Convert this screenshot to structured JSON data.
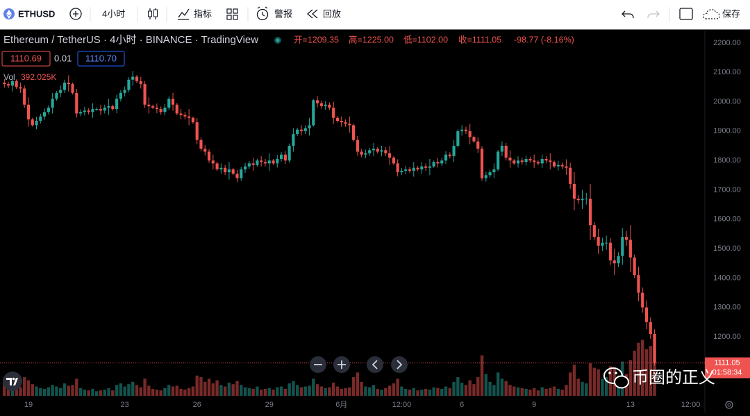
{
  "toolbar": {
    "symbol": "ETHUSD",
    "interval": "4小时",
    "indicators": "指标",
    "alert": "警报",
    "replay": "回放",
    "save": "保存"
  },
  "chart_data": {
    "type": "candlestick",
    "title": "Ethereum / TetherUS · 4小时 · BINANCE · TradingView",
    "ohlc_labels": [
      "开=1209.35",
      "高=1225.00",
      "低=1102.00",
      "收=1111.05",
      "-98.77 (-8.16%)"
    ],
    "bid": "1110.69",
    "spread": "0.01",
    "ask": "1110.70",
    "volume_title": "Vol",
    "volume_label": "392.025K",
    "last_price_label": "1111.05",
    "countdown": "01:58:34",
    "categories": [
      null,
      null,
      null,
      null,
      null,
      null,
      "19",
      null,
      null,
      null,
      null,
      null,
      null,
      null,
      null,
      null,
      null,
      null,
      null,
      null,
      null,
      null,
      null,
      null,
      null,
      null,
      null,
      null,
      null,
      null,
      "23",
      null,
      null,
      null,
      null,
      null,
      null,
      null,
      null,
      null,
      null,
      null,
      null,
      null,
      null,
      null,
      null,
      null,
      "26",
      null,
      null,
      null,
      null,
      null,
      null,
      null,
      null,
      null,
      null,
      null,
      null,
      null,
      null,
      null,
      null,
      null,
      "29",
      null,
      null,
      null,
      null,
      null,
      null,
      null,
      null,
      null,
      null,
      null,
      null,
      null,
      null,
      null,
      null,
      null,
      "6月",
      null,
      null,
      null,
      null,
      null,
      null,
      null,
      null,
      null,
      null,
      null,
      null,
      null,
      null,
      "12:00",
      null,
      null,
      null,
      null,
      null,
      null,
      null,
      null,
      null,
      null,
      null,
      null,
      null,
      null,
      "6",
      null,
      null,
      null,
      null,
      null,
      null,
      null,
      null,
      null,
      null,
      null,
      null,
      null,
      null,
      null,
      null,
      null,
      "9",
      null,
      null,
      null,
      null,
      null,
      null,
      null,
      null,
      null,
      null,
      null,
      null,
      null,
      null,
      null,
      null,
      null,
      null,
      null,
      null,
      null,
      null,
      null,
      "13",
      null,
      null,
      null,
      null,
      null,
      null,
      null,
      null,
      null,
      null,
      null,
      null,
      null,
      null,
      "12:00",
      null,
      null
    ],
    "open": [
      2065,
      2060,
      2055,
      2070,
      2050,
      2045,
      1990,
      1940,
      1920,
      1935,
      1950,
      1965,
      1980,
      2010,
      2030,
      2040,
      2065,
      2060,
      2030,
      1960,
      1965,
      1970,
      1965,
      1975,
      1975,
      1970,
      1980,
      1985,
      1975,
      2010,
      2030,
      2040,
      2075,
      2085,
      2070,
      2060,
      1990,
      1985,
      1980,
      1975,
      1965,
      1980,
      2010,
      1990,
      1960,
      1955,
      1950,
      1945,
      1930,
      1870,
      1840,
      1830,
      1800,
      1790,
      1770,
      1775,
      1760,
      1770,
      1755,
      1740,
      1770,
      1780,
      1790,
      1785,
      1800,
      1795,
      1790,
      1800,
      1790,
      1805,
      1820,
      1800,
      1850,
      1890,
      1905,
      1900,
      1910,
      1920,
      2005,
      1995,
      1985,
      1990,
      1980,
      1945,
      1935,
      1930,
      1925,
      1920,
      1870,
      1830,
      1820,
      1825,
      1835,
      1840,
      1830,
      1835,
      1825,
      1810,
      1790,
      1760,
      1765,
      1770,
      1765,
      1775,
      1770,
      1780,
      1775,
      1780,
      1795,
      1790,
      1800,
      1820,
      1815,
      1850,
      1900,
      1905,
      1900,
      1880,
      1865,
      1840,
      1740,
      1750,
      1760,
      1770,
      1830,
      1850,
      1810,
      1800,
      1790,
      1800,
      1795,
      1805,
      1800,
      1795,
      1790,
      1805,
      1800,
      1795,
      1780,
      1785,
      1780,
      1775,
      1720,
      1670,
      1665,
      1670,
      1670,
      1580,
      1540,
      1510,
      1520,
      1520,
      1460,
      1450,
      1475,
      1540,
      1530,
      1470,
      1410,
      1350,
      1300,
      1250,
      1209.35,
      null,
      null,
      null,
      null,
      null,
      null,
      null,
      null,
      null,
      null,
      null
    ],
    "high": [
      2077,
      2068,
      2090,
      2076,
      2065,
      2055,
      2015,
      1945,
      1949,
      1959,
      1977,
      1988,
      2030,
      2036,
      2055,
      2075,
      2090,
      2065,
      2044,
      1974,
      1982,
      1978,
      1995,
      1981,
      1990,
      1990,
      2010,
      1990,
      2024,
      2039,
      2052,
      2083,
      2105,
      2091,
      2085,
      2070,
      2015,
      1990,
      1994,
      1984,
      1992,
      2018,
      2030,
      1996,
      1975,
      1965,
      1975,
      1950,
      1944,
      1879,
      1852,
      1838,
      1820,
      1796,
      1790,
      1785,
      1795,
      1775,
      1769,
      1779,
      1792,
      1798,
      1810,
      1806,
      1815,
      1805,
      1825,
      1805,
      1819,
      1829,
      1832,
      1858,
      1910,
      1911,
      1920,
      1920,
      1945,
      2010,
      2019,
      2004,
      2002,
      1998,
      2000,
      1951,
      1950,
      1940,
      1950,
      1925,
      1884,
      1839,
      1837,
      1843,
      1860,
      1846,
      1850,
      1845,
      1850,
      1815,
      1804,
      1774,
      1782,
      1778,
      1795,
      1781,
      1795,
      1790,
      1805,
      1800,
      1809,
      1809,
      1832,
      1828,
      1870,
      1906,
      1920,
      1915,
      1925,
      1885,
      1879,
      1849,
      1762,
      1768,
      1790,
      1836,
      1865,
      1860,
      1835,
      1805,
      1814,
      1809,
      1817,
      1813,
      1820,
      1801,
      1820,
      1815,
      1825,
      1800,
      1799,
      1794,
      1804,
      1791,
      1760,
      1682,
      1700,
      1690,
      1720,
      1590,
      1568,
      1538,
      1544,
      1536,
      1500,
      1487,
      1570,
      1560,
      1580,
      1480,
      1438,
      1368,
      1324,
      1266,
      1225,
      null,
      null,
      null,
      null,
      null,
      null,
      null,
      null,
      null,
      null,
      null
    ],
    "low": [
      2048,
      2047,
      2035,
      2044,
      2030,
      1980,
      1915,
      1915,
      1906,
      1926,
      1938,
      1957,
      1960,
      2004,
      2015,
      2030,
      2035,
      2025,
      1946,
      1951,
      1953,
      1957,
      1945,
      1969,
      1955,
      1960,
      1955,
      1970,
      1961,
      2001,
      2018,
      2032,
      2055,
      2064,
      2045,
      1980,
      1960,
      1975,
      1961,
      1956,
      1953,
      1972,
      1970,
      1954,
      1940,
      1940,
      1920,
      1925,
      1856,
      1831,
      1818,
      1792,
      1770,
      1764,
      1755,
      1750,
      1735,
      1750,
      1726,
      1731,
      1758,
      1772,
      1765,
      1779,
      1780,
      1780,
      1765,
      1785,
      1776,
      1796,
      1788,
      1792,
      1830,
      1884,
      1885,
      1890,
      1885,
      1915,
      1981,
      1976,
      1973,
      1972,
      1925,
      1929,
      1915,
      1915,
      1895,
      1865,
      1816,
      1811,
      1808,
      1817,
      1815,
      1824,
      1815,
      1815,
      1785,
      1785,
      1746,
      1751,
      1753,
      1757,
      1745,
      1764,
      1755,
      1765,
      1750,
      1775,
      1776,
      1781,
      1788,
      1807,
      1795,
      1844,
      1885,
      1890,
      1855,
      1860,
      1826,
      1731,
      1728,
      1742,
      1740,
      1764,
      1815,
      1800,
      1775,
      1785,
      1776,
      1786,
      1783,
      1792,
      1775,
      1784,
      1775,
      1790,
      1770,
      1775,
      1766,
      1771,
      1751,
      1704,
      1630,
      1653,
      1635,
      1650,
      1530,
      1530,
      1482,
      1492,
      1496,
      1444,
      1410,
      1438,
      1445,
      1510,
      1420,
      1400,
      1322,
      1282,
      1226,
      1193,
      1102,
      null,
      null,
      null,
      null,
      null,
      null,
      null,
      null,
      null,
      null,
      null
    ],
    "close": [
      2060,
      2055,
      2070,
      2050,
      2045,
      1990,
      1940,
      1920,
      1935,
      1950,
      1965,
      1980,
      2010,
      2030,
      2040,
      2065,
      2060,
      2030,
      1960,
      1965,
      1970,
      1965,
      1975,
      1975,
      1970,
      1980,
      1985,
      1975,
      2010,
      2030,
      2040,
      2075,
      2085,
      2070,
      2060,
      1990,
      1985,
      1980,
      1975,
      1965,
      1980,
      2010,
      1990,
      1960,
      1955,
      1950,
      1945,
      1930,
      1870,
      1840,
      1830,
      1800,
      1790,
      1770,
      1775,
      1760,
      1770,
      1755,
      1740,
      1770,
      1780,
      1790,
      1785,
      1800,
      1795,
      1790,
      1800,
      1790,
      1805,
      1820,
      1800,
      1850,
      1890,
      1905,
      1900,
      1910,
      1920,
      2005,
      1995,
      1985,
      1990,
      1980,
      1945,
      1935,
      1930,
      1925,
      1920,
      1870,
      1830,
      1820,
      1825,
      1835,
      1840,
      1830,
      1835,
      1825,
      1810,
      1790,
      1760,
      1765,
      1770,
      1765,
      1775,
      1770,
      1780,
      1775,
      1780,
      1795,
      1790,
      1800,
      1820,
      1815,
      1850,
      1900,
      1905,
      1900,
      1880,
      1865,
      1840,
      1740,
      1750,
      1760,
      1770,
      1830,
      1850,
      1810,
      1800,
      1790,
      1800,
      1795,
      1805,
      1800,
      1795,
      1790,
      1805,
      1800,
      1795,
      1780,
      1785,
      1780,
      1775,
      1720,
      1670,
      1665,
      1670,
      1670,
      1580,
      1540,
      1510,
      1520,
      1520,
      1460,
      1450,
      1475,
      1540,
      1530,
      1470,
      1410,
      1350,
      1300,
      1250,
      1209.35,
      1111.05,
      null,
      null,
      null,
      null,
      null,
      null,
      null,
      null,
      null,
      null,
      null
    ],
    "volume": [
      110,
      70,
      60,
      80,
      55,
      120,
      100,
      75,
      60,
      50,
      45,
      55,
      70,
      60,
      50,
      80,
      65,
      70,
      110,
      50,
      40,
      35,
      45,
      30,
      35,
      40,
      50,
      35,
      70,
      80,
      60,
      75,
      90,
      70,
      55,
      110,
      65,
      45,
      40,
      35,
      50,
      70,
      60,
      65,
      45,
      40,
      50,
      60,
      130,
      120,
      90,
      110,
      80,
      100,
      70,
      60,
      85,
      75,
      95,
      70,
      55,
      50,
      45,
      60,
      40,
      45,
      50,
      40,
      55,
      60,
      45,
      80,
      95,
      70,
      55,
      60,
      65,
      110,
      75,
      60,
      50,
      55,
      85,
      60,
      45,
      50,
      55,
      120,
      150,
      90,
      60,
      55,
      70,
      45,
      40,
      50,
      65,
      80,
      110,
      60,
      45,
      40,
      50,
      35,
      40,
      45,
      40,
      55,
      50,
      45,
      60,
      50,
      90,
      120,
      85,
      70,
      100,
      75,
      120,
      260,
      140,
      90,
      70,
      150,
      110,
      95,
      70,
      60,
      55,
      50,
      45,
      40,
      50,
      35,
      55,
      45,
      50,
      60,
      45,
      40,
      70,
      150,
      200,
      110,
      90,
      80,
      210,
      180,
      170,
      110,
      120,
      190,
      180,
      130,
      220,
      140,
      230,
      290,
      340,
      360,
      300,
      320,
      392.025,
      null,
      null,
      null,
      null,
      null,
      null,
      null,
      null,
      null,
      null,
      null
    ],
    "ylim": [
      999,
      2247
    ],
    "yticks": [
      {
        "value": 1200,
        "label": "1200.00"
      },
      {
        "value": 1300,
        "label": "1300.00"
      },
      {
        "value": 1400,
        "label": "1400.00"
      },
      {
        "value": 1500,
        "label": "1500.00"
      },
      {
        "value": 1600,
        "label": "1600.00"
      },
      {
        "value": 1700,
        "label": "1700.00"
      },
      {
        "value": 1800,
        "label": "1800.00"
      },
      {
        "value": 1900,
        "label": "1900.00"
      },
      {
        "value": 2000,
        "label": "2000.00"
      },
      {
        "value": 2100,
        "label": "2100.00"
      },
      {
        "value": 2200,
        "label": "2200.00"
      }
    ],
    "grid": false,
    "up_color": "#26a69a",
    "down_color": "#ef5350"
  },
  "watermark": "币圈的正义"
}
